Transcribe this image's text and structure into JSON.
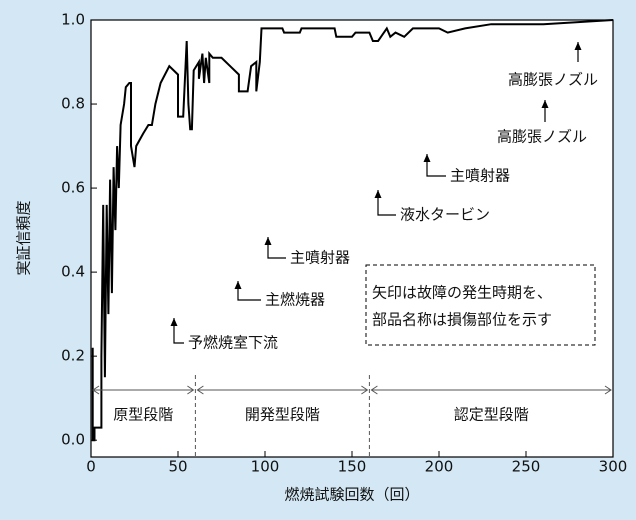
{
  "chart_data": {
    "type": "line",
    "xlabel": "燃焼試験回数（回）",
    "ylabel": "実証信頼度",
    "xlim": [
      0,
      300
    ],
    "ylim": [
      -0.04,
      1.0
    ],
    "xticks": [
      0,
      50,
      100,
      150,
      200,
      250,
      300
    ],
    "yticks": [
      {
        "value": 0,
        "label": "0.0"
      },
      0.2,
      0.4,
      0.6,
      0.8,
      {
        "value": 1,
        "label": "1.0"
      }
    ],
    "color": "#000000",
    "x": [
      1,
      1,
      2,
      2,
      6,
      6,
      7,
      8,
      9,
      10,
      11,
      12,
      13,
      14,
      15,
      16,
      17,
      19,
      20,
      22,
      23,
      23,
      25,
      26,
      30,
      33,
      35,
      37,
      40,
      45,
      50,
      50,
      53,
      55,
      56,
      57,
      58,
      59,
      62,
      62,
      64,
      65,
      66,
      68,
      68,
      70,
      75,
      80,
      85,
      85,
      90,
      92,
      95,
      95,
      97,
      98,
      110,
      111,
      120,
      121,
      140,
      141,
      150,
      152,
      160,
      162,
      165,
      170,
      172,
      175,
      180,
      185,
      200,
      205,
      215,
      230,
      260,
      300
    ],
    "values": [
      0.22,
      0,
      0,
      0.03,
      0.03,
      0.2,
      0.56,
      0.15,
      0.56,
      0.3,
      0.62,
      0.35,
      0.65,
      0.5,
      0.7,
      0.6,
      0.75,
      0.8,
      0.84,
      0.85,
      0.85,
      0.7,
      0.65,
      0.7,
      0.73,
      0.75,
      0.75,
      0.8,
      0.85,
      0.89,
      0.87,
      0.77,
      0.77,
      0.95,
      0.8,
      0.74,
      0.74,
      0.88,
      0.9,
      0.86,
      0.92,
      0.85,
      0.91,
      0.85,
      0.92,
      0.91,
      0.91,
      0.89,
      0.87,
      0.83,
      0.83,
      0.89,
      0.9,
      0.83,
      0.9,
      0.98,
      0.98,
      0.97,
      0.97,
      0.98,
      0.98,
      0.96,
      0.96,
      0.97,
      0.97,
      0.95,
      0.95,
      0.98,
      0.96,
      0.97,
      0.96,
      0.98,
      0.98,
      0.97,
      0.98,
      0.99,
      0.99,
      1.0
    ],
    "annotations": [
      "予燃焼室下流",
      "主燃焼器",
      "主噴射器",
      "液水タービン",
      "主噴射器",
      "高膨張ノズル",
      "高膨張ノズル"
    ],
    "note": [
      "矢印は故障の発生時期を、",
      "部品名称は損傷部位を示す"
    ],
    "phases": [
      {
        "label": "原型段階",
        "start": 0,
        "end": 60
      },
      {
        "label": "開発型段階",
        "start": 60,
        "end": 160
      },
      {
        "label": "認定型段階",
        "start": 160,
        "end": 300
      }
    ]
  }
}
